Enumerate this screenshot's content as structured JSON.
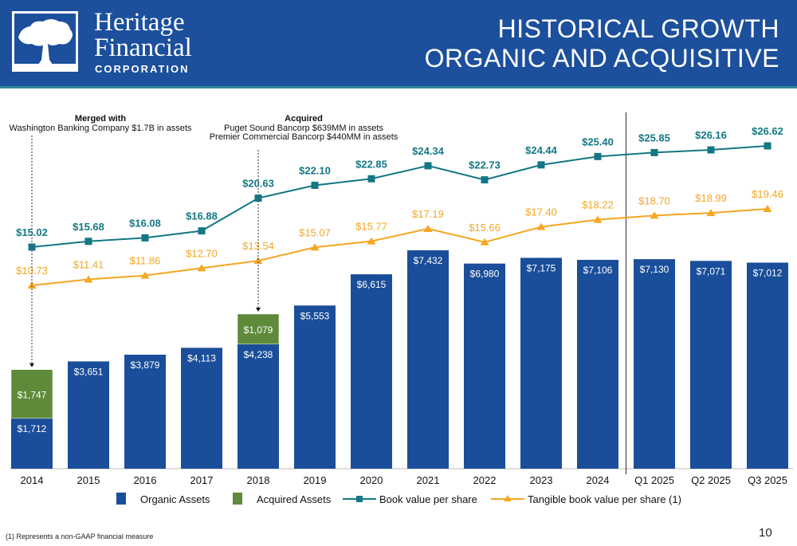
{
  "header": {
    "company_line1": "Heritage",
    "company_line2": "Financial",
    "company_line3": "CORPORATION",
    "title_line1": "HISTORICAL GROWTH",
    "title_line2": "ORGANIC AND ACQUISITIVE",
    "logo_icon": "tree-icon"
  },
  "annotations": [
    {
      "title": "Merged with",
      "lines": [
        "Washington Banking Company $1.7B in assets"
      ],
      "category": "2014"
    },
    {
      "title": "Acquired",
      "lines": [
        "Puget Sound Bancorp $639MM in assets",
        "Premier Commercial Bancorp $440MM in assets"
      ],
      "category": "2018"
    }
  ],
  "footnote": "(1) Represents a non-GAAP financial measure",
  "page_number": "10",
  "colors": {
    "organic": "#1a4e9a",
    "acquired": "#5e8a3a",
    "book_value": "#137784",
    "tangible_book_value": "#f5a623",
    "header_bg": "#1c4f9c"
  },
  "chart_data": {
    "type": "bar",
    "title": "Historical Growth - Organic and Acquisitive",
    "xlabel": "",
    "ylabel": "",
    "categories": [
      "2014",
      "2015",
      "2016",
      "2017",
      "2018",
      "2019",
      "2020",
      "2021",
      "2022",
      "2023",
      "2024",
      "Q1 2025",
      "Q2 2025",
      "Q3 2025"
    ],
    "divider_after": "2024",
    "bar_series": [
      {
        "name": "Organic Assets",
        "values": [
          1712,
          3651,
          3879,
          4113,
          4238,
          5553,
          6615,
          7432,
          6980,
          7175,
          7106,
          7130,
          7071,
          7012
        ],
        "labels": [
          "$1,712",
          "$3,651",
          "$3,879",
          "$4,113",
          "$4,238",
          "$5,553",
          "$6,615",
          "$7,432",
          "$6,980",
          "$7,175",
          "$7,106",
          "$7,130",
          "$7,071",
          "$7,012"
        ]
      },
      {
        "name": "Acquired Assets",
        "values": [
          1747,
          null,
          null,
          null,
          1079,
          null,
          null,
          null,
          null,
          null,
          null,
          null,
          null,
          null
        ],
        "labels": [
          "$1,747",
          "",
          "",
          "",
          "$1,079",
          "",
          "",
          "",
          "",
          "",
          "",
          "",
          "",
          ""
        ]
      }
    ],
    "line_series": [
      {
        "name": "Book value per share",
        "marker": "square",
        "values": [
          15.02,
          15.68,
          16.08,
          16.88,
          20.63,
          22.1,
          22.85,
          24.34,
          22.73,
          24.44,
          25.4,
          25.85,
          26.16,
          26.62
        ],
        "labels": [
          "$15.02",
          "$15.68",
          "$16.08",
          "$16.88",
          "$20.63",
          "$22.10",
          "$22.85",
          "$24.34",
          "$22.73",
          "$24.44",
          "$25.40",
          "$25.85",
          "$26.16",
          "$26.62"
        ]
      },
      {
        "name": "Tangible book value per share (1)",
        "marker": "triangle",
        "values": [
          10.73,
          11.41,
          11.86,
          12.7,
          13.54,
          15.07,
          15.77,
          17.19,
          15.66,
          17.4,
          18.22,
          18.7,
          18.99,
          19.46
        ],
        "labels": [
          "$10.73",
          "$11.41",
          "$11.86",
          "$12.70",
          "$13.54",
          "$15.07",
          "$15.77",
          "$17.19",
          "$15.66",
          "$17.40",
          "$18.22",
          "$18.70",
          "$18.99",
          "$19.46"
        ]
      }
    ],
    "legend": [
      "Organic Assets",
      "Acquired Assets",
      "Book value per share",
      "Tangible book value per share (1)"
    ],
    "legend_position": "bottom",
    "grid": false
  }
}
